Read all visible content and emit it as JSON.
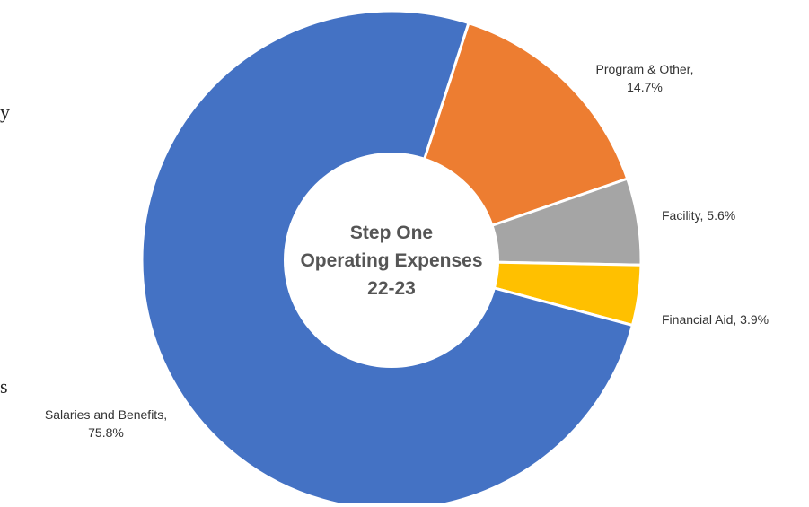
{
  "chart_data": {
    "type": "pie",
    "title": "Step One Operating Expenses 22-23",
    "title_lines": [
      "Step One",
      "Operating Expenses",
      "22-23"
    ],
    "donut": true,
    "start_angle_deg": 18,
    "direction": "clockwise",
    "slices": [
      {
        "name": "Program & Other",
        "value": 14.7,
        "label_lines": [
          "Program & Other,",
          "14.7%"
        ],
        "color": "#ED7D31"
      },
      {
        "name": "Facility",
        "value": 5.6,
        "label_lines": [
          "Facility, 5.6%"
        ],
        "color": "#A5A5A5"
      },
      {
        "name": "Financial Aid",
        "value": 3.9,
        "label_lines": [
          "Financial Aid, 3.9%"
        ],
        "color": "#FFC000"
      },
      {
        "name": "Salaries and Benefits",
        "value": 75.8,
        "label_lines": [
          "Salaries and Benefits,",
          "75.8%"
        ],
        "color": "#4472C4"
      }
    ],
    "slice_border_color": "#FFFFFF",
    "legend": "none"
  },
  "edge_glyphs": {
    "top": "y",
    "bottom": "s"
  }
}
